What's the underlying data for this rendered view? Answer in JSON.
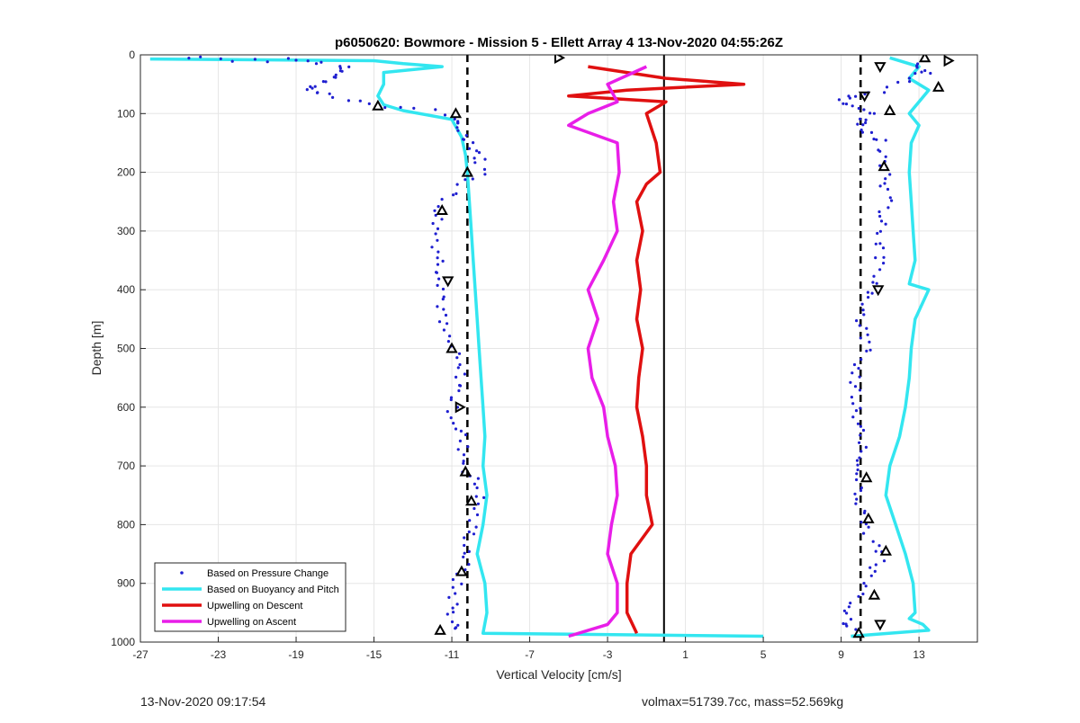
{
  "footer": {
    "printed_time": "13-Nov-2020 09:17:54",
    "summary": "volmax=51739.7cc, mass=52.569kg"
  },
  "chart_data": {
    "type": "scatter",
    "title": "p6050620: Bowmore - Mission 5 - Ellett Array 4 13-Nov-2020 04:55:26Z",
    "xlabel": "Vertical Velocity [cm/s]",
    "ylabel": "Depth [m]",
    "xlim": [
      -27,
      16
    ],
    "ylim": [
      0,
      1000
    ],
    "y_reversed": true,
    "grid": true,
    "xticks": [
      -27,
      -23,
      -19,
      -15,
      -11,
      -7,
      -3,
      1,
      5,
      9,
      13
    ],
    "yticks": [
      0,
      100,
      200,
      300,
      400,
      500,
      600,
      700,
      800,
      900,
      1000
    ],
    "legend_position": "bottom-left",
    "legend": [
      {
        "label": "Based on Pressure Change",
        "marker": "dot",
        "color": "#1f1fd0"
      },
      {
        "label": "Based on Buoyancy and Pitch",
        "marker": "line",
        "color": "#33e6f0"
      },
      {
        "label": "Upwelling on Descent",
        "marker": "line",
        "color": "#e01010"
      },
      {
        "label": "Upwelling on Ascent",
        "marker": "line",
        "color": "#e81ee8"
      }
    ],
    "reference_lines": [
      {
        "style": "dashed",
        "x": -10.2,
        "color": "#000000"
      },
      {
        "style": "dashed",
        "x": 10.0,
        "color": "#000000"
      },
      {
        "style": "solid",
        "x": -0.1,
        "color": "#000000"
      }
    ],
    "series": [
      {
        "name": "Based on Buoyancy and Pitch",
        "side": "descent",
        "color": "#33e6f0",
        "y": [
          7,
          10,
          15,
          20,
          30,
          50,
          70,
          85,
          95,
          110,
          140,
          170,
          200,
          250,
          300,
          350,
          400,
          450,
          500,
          550,
          600,
          650,
          700,
          750,
          800,
          850,
          900,
          950,
          985,
          990
        ],
        "x": [
          -26.5,
          -15,
          -13.5,
          -11.5,
          -14.5,
          -14.5,
          -14.8,
          -14.5,
          -13.5,
          -11,
          -10.5,
          -10.3,
          -10.2,
          -10.1,
          -10,
          -9.9,
          -9.8,
          -9.7,
          -9.6,
          -9.5,
          -9.4,
          -9.3,
          -9.4,
          -9.2,
          -9.4,
          -9.7,
          -9.3,
          -9.2,
          -9.4,
          5
        ]
      },
      {
        "name": "Based on Buoyancy and Pitch",
        "side": "ascent",
        "color": "#33e6f0",
        "y": [
          990,
          980,
          970,
          960,
          950,
          900,
          850,
          800,
          750,
          700,
          650,
          600,
          550,
          500,
          450,
          400,
          390,
          350,
          300,
          250,
          200,
          150,
          120,
          100,
          80,
          60,
          40,
          20,
          5
        ],
        "x": [
          9.5,
          13.5,
          13.2,
          12.5,
          12.8,
          12.7,
          12.3,
          11.8,
          11.3,
          11.5,
          12,
          12.3,
          12.5,
          12.6,
          12.8,
          13.5,
          12.5,
          12.8,
          12.7,
          12.6,
          12.5,
          12.6,
          13,
          12.5,
          13,
          13.5,
          12.5,
          13,
          11.5
        ]
      },
      {
        "name": "Based on Pressure Change",
        "side": "descent",
        "color": "#1f1fd0",
        "y": [
          5,
          10,
          20,
          40,
          60,
          80,
          100,
          130,
          160,
          200,
          250,
          300,
          350,
          400,
          450,
          500,
          550,
          600,
          650,
          700,
          750,
          800,
          850,
          900,
          950,
          985
        ],
        "x": [
          -24.5,
          -19.5,
          -16.5,
          -17,
          -18.5,
          -16,
          -11.2,
          -10.5,
          -9.7,
          -9.4,
          -11.5,
          -11.8,
          -11.6,
          -11.4,
          -11.6,
          -11,
          -10.5,
          -11,
          -10.5,
          -10.3,
          -9.5,
          -10,
          -10.2,
          -10.8,
          -11,
          -10.7
        ]
      },
      {
        "name": "Based on Pressure Change",
        "side": "ascent",
        "color": "#1f1fd0",
        "y": [
          980,
          950,
          900,
          850,
          800,
          750,
          700,
          650,
          600,
          550,
          500,
          450,
          400,
          350,
          300,
          250,
          200,
          150,
          120,
          100,
          80,
          60,
          30,
          10
        ],
        "x": [
          9.5,
          9.2,
          10.5,
          11,
          10.2,
          10,
          10.1,
          10,
          9.8,
          9.8,
          10.2,
          10,
          10.7,
          11,
          11.2,
          11.3,
          11.2,
          11,
          9.8,
          10.5,
          9,
          11,
          13.5,
          12.5
        ]
      },
      {
        "name": "Upwelling on Descent",
        "color": "#e01010",
        "y": [
          20,
          30,
          40,
          50,
          60,
          70,
          80,
          100,
          150,
          200,
          220,
          250,
          300,
          350,
          400,
          450,
          500,
          550,
          600,
          650,
          700,
          750,
          800,
          850,
          900,
          950,
          985
        ],
        "x": [
          -4,
          -2,
          0,
          4,
          -2,
          -5,
          0,
          -1,
          -0.5,
          -0.3,
          -1,
          -1.5,
          -1.2,
          -1.5,
          -1.3,
          -1.5,
          -1.2,
          -1.4,
          -1.5,
          -1.2,
          -1,
          -1,
          -0.7,
          -1.8,
          -2,
          -2,
          -1.5
        ]
      },
      {
        "name": "Upwelling on Ascent",
        "color": "#e81ee8",
        "y": [
          990,
          970,
          950,
          900,
          850,
          800,
          750,
          700,
          650,
          600,
          550,
          500,
          450,
          400,
          350,
          300,
          250,
          200,
          150,
          120,
          100,
          80,
          50,
          20
        ],
        "x": [
          -5,
          -3,
          -2.5,
          -2.5,
          -3,
          -2.8,
          -2.5,
          -2.6,
          -3,
          -3.2,
          -3.8,
          -4,
          -3.5,
          -4,
          -3.2,
          -2.5,
          -2.7,
          -2.4,
          -2.5,
          -5,
          -4,
          -2.5,
          -3,
          -1
        ]
      }
    ],
    "markers": [
      {
        "shape": "triangle-right",
        "x": -5.5,
        "y": 5
      },
      {
        "shape": "triangle-up",
        "x": -14.8,
        "y": 87
      },
      {
        "shape": "triangle-up",
        "x": -10.8,
        "y": 100
      },
      {
        "shape": "triangle-up",
        "x": -10.2,
        "y": 200
      },
      {
        "shape": "triangle-up",
        "x": -11.5,
        "y": 265
      },
      {
        "shape": "triangle-down",
        "x": -11.2,
        "y": 385
      },
      {
        "shape": "triangle-up",
        "x": -11.0,
        "y": 500
      },
      {
        "shape": "triangle-right",
        "x": -10.6,
        "y": 600
      },
      {
        "shape": "triangle-up",
        "x": -10.3,
        "y": 710
      },
      {
        "shape": "triangle-up",
        "x": -10.0,
        "y": 760
      },
      {
        "shape": "triangle-up",
        "x": -10.5,
        "y": 880
      },
      {
        "shape": "triangle-up",
        "x": -11.6,
        "y": 980
      },
      {
        "shape": "triangle-up",
        "x": 13.3,
        "y": 5
      },
      {
        "shape": "triangle-right",
        "x": 14.5,
        "y": 10
      },
      {
        "shape": "triangle-down",
        "x": 11.0,
        "y": 20
      },
      {
        "shape": "triangle-up",
        "x": 14.0,
        "y": 55
      },
      {
        "shape": "triangle-down",
        "x": 10.2,
        "y": 70
      },
      {
        "shape": "triangle-up",
        "x": 11.5,
        "y": 95
      },
      {
        "shape": "triangle-up",
        "x": 11.2,
        "y": 190
      },
      {
        "shape": "triangle-down",
        "x": 10.9,
        "y": 400
      },
      {
        "shape": "triangle-up",
        "x": 10.3,
        "y": 720
      },
      {
        "shape": "triangle-up",
        "x": 10.4,
        "y": 790
      },
      {
        "shape": "triangle-up",
        "x": 11.3,
        "y": 845
      },
      {
        "shape": "triangle-up",
        "x": 10.7,
        "y": 920
      },
      {
        "shape": "triangle-down",
        "x": 11.0,
        "y": 970
      },
      {
        "shape": "triangle-up",
        "x": 9.9,
        "y": 985
      }
    ]
  }
}
